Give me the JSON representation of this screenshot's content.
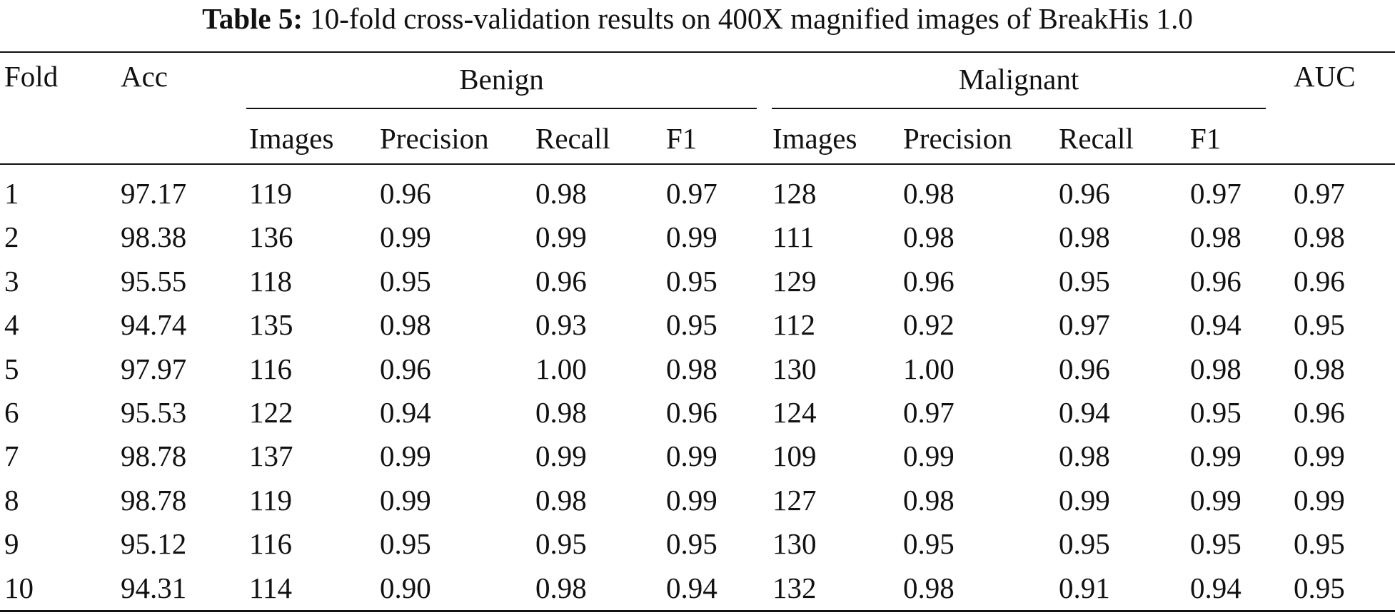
{
  "caption": {
    "label": "Table 5:",
    "text": "10-fold cross-validation results on 400X magnified images of BreakHis 1.0"
  },
  "headers": {
    "fold": "Fold",
    "acc": "Acc",
    "benign": "Benign",
    "malignant": "Malignant",
    "auc": "AUC",
    "sub": [
      "Images",
      "Precision",
      "Recall",
      "F1",
      "Images",
      "Precision",
      "Recall",
      "F1"
    ]
  },
  "rows": [
    [
      "1",
      "97.17",
      "119",
      "0.96",
      "0.98",
      "0.97",
      "128",
      "0.98",
      "0.96",
      "0.97",
      "0.97"
    ],
    [
      "2",
      "98.38",
      "136",
      "0.99",
      "0.99",
      "0.99",
      "111",
      "0.98",
      "0.98",
      "0.98",
      "0.98"
    ],
    [
      "3",
      "95.55",
      "118",
      "0.95",
      "0.96",
      "0.95",
      "129",
      "0.96",
      "0.95",
      "0.96",
      "0.96"
    ],
    [
      "4",
      "94.74",
      "135",
      "0.98",
      "0.93",
      "0.95",
      "112",
      "0.92",
      "0.97",
      "0.94",
      "0.95"
    ],
    [
      "5",
      "97.97",
      "116",
      "0.96",
      "1.00",
      "0.98",
      "130",
      "1.00",
      "0.96",
      "0.98",
      "0.98"
    ],
    [
      "6",
      "95.53",
      "122",
      "0.94",
      "0.98",
      "0.96",
      "124",
      "0.97",
      "0.94",
      "0.95",
      "0.96"
    ],
    [
      "7",
      "98.78",
      "137",
      "0.99",
      "0.99",
      "0.99",
      "109",
      "0.99",
      "0.98",
      "0.99",
      "0.99"
    ],
    [
      "8",
      "98.78",
      "119",
      "0.99",
      "0.98",
      "0.99",
      "127",
      "0.98",
      "0.99",
      "0.99",
      "0.99"
    ],
    [
      "9",
      "95.12",
      "116",
      "0.95",
      "0.95",
      "0.95",
      "130",
      "0.95",
      "0.95",
      "0.95",
      "0.95"
    ],
    [
      "10",
      "94.31",
      "114",
      "0.90",
      "0.98",
      "0.94",
      "132",
      "0.98",
      "0.91",
      "0.94",
      "0.95"
    ]
  ]
}
